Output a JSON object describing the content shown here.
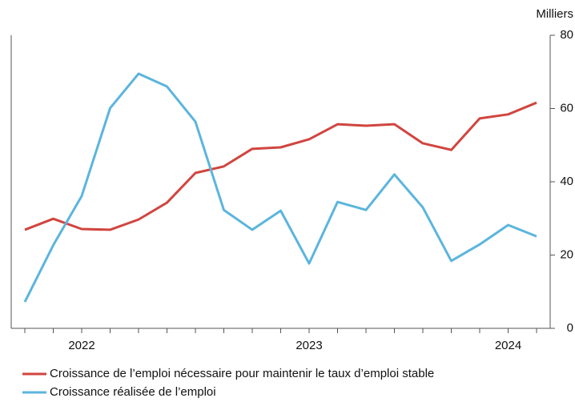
{
  "chart_data": {
    "type": "line",
    "y_unit": "Milliers",
    "categories": [
      null,
      null,
      "2022",
      null,
      null,
      null,
      null,
      null,
      null,
      null,
      "2023",
      null,
      null,
      null,
      null,
      null,
      null,
      "2024",
      null
    ],
    "series": [
      {
        "name": "Croissance de l’emploi nécessaire pour maintenir le taux d’emploi stable",
        "color": "#d1453f",
        "values": [
          26.9,
          29.9,
          27.1,
          26.9,
          29.7,
          34.3,
          42.4,
          44.2,
          49.0,
          49.4,
          51.6,
          55.7,
          55.3,
          55.7,
          50.5,
          48.7,
          57.3,
          58.4,
          61.6
        ]
      },
      {
        "name": "Croissance réalisée de l’emploi",
        "color": "#5bb5dd",
        "values": [
          7.2,
          22.7,
          36.1,
          60.1,
          69.5,
          66.0,
          56.4,
          32.3,
          26.9,
          32.1,
          17.7,
          34.5,
          32.3,
          42.0,
          33.0,
          18.4,
          22.9,
          28.2,
          25.1
        ]
      }
    ],
    "ylim": [
      0,
      80
    ],
    "yticks": [
      0,
      20,
      40,
      60,
      80
    ],
    "y_axis_side": "right"
  }
}
